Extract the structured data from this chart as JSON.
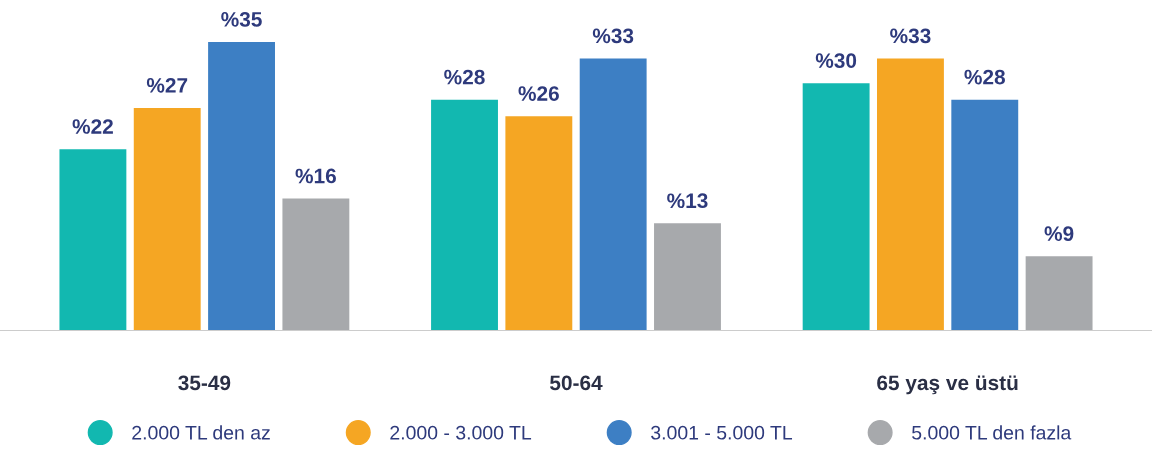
{
  "chart_data": {
    "type": "bar",
    "categories": [
      "35-49",
      "50-64",
      "65 yaş ve üstü"
    ],
    "series": [
      {
        "name": "2.000 TL den az",
        "color": "#12b8b0",
        "values": [
          22,
          28,
          30
        ],
        "value_labels": [
          "%22",
          "%28",
          "%30"
        ]
      },
      {
        "name": "2.000 - 3.000 TL",
        "color": "#f5a623",
        "values": [
          27,
          26,
          33
        ],
        "value_labels": [
          "%27",
          "%26",
          "%33"
        ]
      },
      {
        "name": "3.001 - 5.000 TL",
        "color": "#3d7fc4",
        "values": [
          35,
          33,
          28
        ],
        "value_labels": [
          "%35",
          "%33",
          "%28"
        ]
      },
      {
        "name": "5.000 TL den fazla",
        "color": "#a7a9ac",
        "values": [
          16,
          13,
          9
        ],
        "value_labels": [
          "%16",
          "%13",
          "%9"
        ]
      }
    ],
    "tick_labels": "x",
    "legend": "bottom",
    "grid": false
  }
}
